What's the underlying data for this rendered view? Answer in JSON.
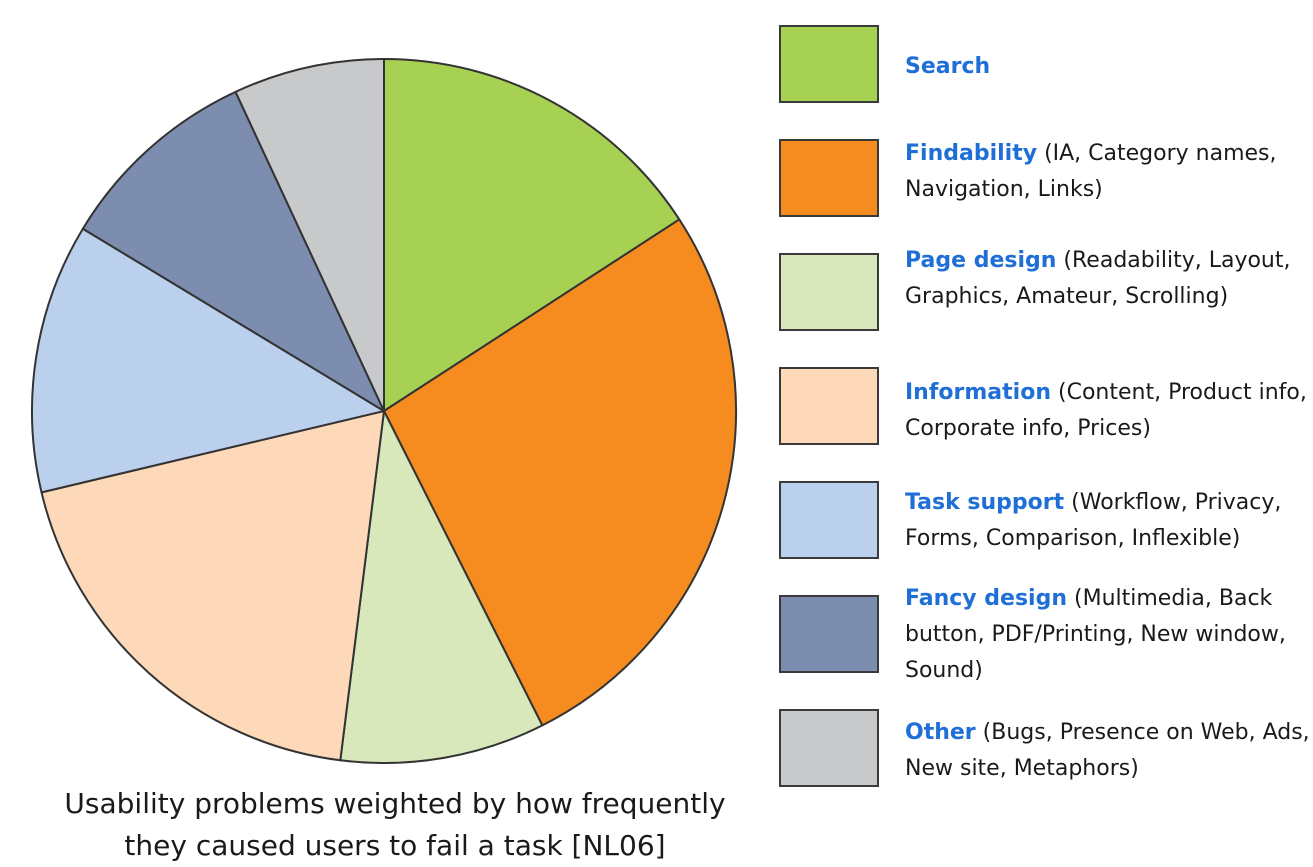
{
  "chart_data": {
    "type": "pie",
    "caption_lines": [
      "Usability problems weighted by how frequently",
      "they caused users to fail a task [NL06]"
    ],
    "slices": [
      {
        "name": "Search",
        "detail": "",
        "value": 16,
        "color": "#a7d153"
      },
      {
        "name": "Findability",
        "detail": "(IA, Category names, Navigation, Links)",
        "value": 27,
        "color": "#f68b20"
      },
      {
        "name": "Page design",
        "detail": "(Readability, Layout, Graphics, Amateur, Scrolling)",
        "value": 9.5,
        "color": "#d8e8ba"
      },
      {
        "name": "Information",
        "detail": "(Content, Product info, Corporate info, Prices)",
        "value": 19.5,
        "color": "#fdd9b9"
      },
      {
        "name": "Task support",
        "detail": "(Workflow, Privacy, Forms, Comparison, Inflexible)",
        "value": 12.5,
        "color": "#bad0ed"
      },
      {
        "name": "Fancy design",
        "detail": "(Multimedia, Back button, PDF/Printing, New window, Sound)",
        "value": 9.5,
        "color": "#7d8db0"
      },
      {
        "name": "Other",
        "detail": "(Bugs, Presence on Web, Ads, New site, Metaphors)",
        "value": 7,
        "color": "#c8c9cb"
      }
    ],
    "legend_placement": "right",
    "start": "12 o'clock, clockwise"
  }
}
